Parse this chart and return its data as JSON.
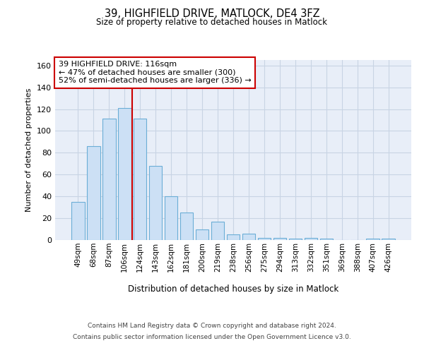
{
  "title1": "39, HIGHFIELD DRIVE, MATLOCK, DE4 3FZ",
  "title2": "Size of property relative to detached houses in Matlock",
  "xlabel": "Distribution of detached houses by size in Matlock",
  "ylabel": "Number of detached properties",
  "categories": [
    "49sqm",
    "68sqm",
    "87sqm",
    "106sqm",
    "124sqm",
    "143sqm",
    "162sqm",
    "181sqm",
    "200sqm",
    "219sqm",
    "238sqm",
    "256sqm",
    "275sqm",
    "294sqm",
    "313sqm",
    "332sqm",
    "351sqm",
    "369sqm",
    "388sqm",
    "407sqm",
    "426sqm"
  ],
  "values": [
    35,
    86,
    111,
    121,
    111,
    68,
    40,
    25,
    10,
    17,
    5,
    6,
    2,
    2,
    1,
    2,
    1,
    0,
    0,
    1,
    1
  ],
  "bar_color": "#cce0f5",
  "bar_edge_color": "#6baed6",
  "vline_color": "#cc0000",
  "vline_pos": 3.5,
  "annotation_title": "39 HIGHFIELD DRIVE: 116sqm",
  "annotation_line2": "← 47% of detached houses are smaller (300)",
  "annotation_line3": "52% of semi-detached houses are larger (336) →",
  "annotation_box_facecolor": "#ffffff",
  "annotation_box_edgecolor": "#cc0000",
  "ylim": [
    0,
    165
  ],
  "yticks": [
    0,
    20,
    40,
    60,
    80,
    100,
    120,
    140,
    160
  ],
  "grid_color": "#c8d4e4",
  "background_color": "#e8eef8",
  "footer1": "Contains HM Land Registry data © Crown copyright and database right 2024.",
  "footer2": "Contains public sector information licensed under the Open Government Licence v3.0."
}
